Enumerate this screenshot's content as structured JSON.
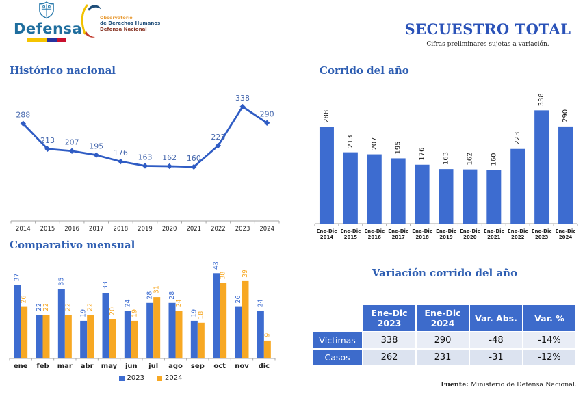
{
  "header": {
    "defensa_wordmark": "Defensa",
    "observatorio": {
      "line1": "Observatorio",
      "line2": "de Derechos Humanos",
      "line3": "Defensa Nacional"
    },
    "title": "SECUESTRO TOTAL",
    "subtitle": "Cifras preliminares sujetas a variación."
  },
  "colors": {
    "primary_blue": "#3D6CD0",
    "line_blue": "#2F5CC4",
    "label_blue": "#4668AE",
    "accent_orange": "#F7A823",
    "heading_blue": "#2E5EB2",
    "axis_gray": "#A6A6A6",
    "table_header_blue": "#3D6BCB"
  },
  "chart_data": [
    {
      "id": "historico",
      "type": "line",
      "title": "Histórico nacional",
      "categories": [
        "2014",
        "2015",
        "2016",
        "2017",
        "2018",
        "2019",
        "2020",
        "2021",
        "2022",
        "2023",
        "2024"
      ],
      "values": [
        288,
        213,
        207,
        195,
        176,
        163,
        162,
        160,
        223,
        338,
        290
      ],
      "xlabel": "",
      "ylabel": "",
      "ylim": [
        0,
        400
      ],
      "grid": false,
      "legend_position": "none",
      "data_labels": true
    },
    {
      "id": "corrido",
      "type": "bar",
      "title": "Corrido del año",
      "categories": [
        "Ene-Dic\n2014",
        "Ene-Dic\n2015",
        "Ene-Dic\n2016",
        "Ene-Dic\n2017",
        "Ene-Dic\n2018",
        "Ene-Dic\n2019",
        "Ene-Dic\n2020",
        "Ene-Dic\n2021",
        "Ene-Dic\n2022",
        "Ene-Dic\n2023",
        "Ene-Dic\n2024"
      ],
      "values": [
        288,
        213,
        207,
        195,
        176,
        163,
        162,
        160,
        223,
        338,
        290
      ],
      "xlabel": "",
      "ylabel": "",
      "ylim": [
        0,
        420
      ],
      "grid": false,
      "legend_position": "none",
      "data_labels": "rotated"
    },
    {
      "id": "mensual",
      "type": "bar",
      "title": "Comparativo mensual",
      "categories": [
        "ene",
        "feb",
        "mar",
        "abr",
        "may",
        "jun",
        "jul",
        "ago",
        "sep",
        "oct",
        "nov",
        "dic"
      ],
      "series": [
        {
          "name": "2023",
          "color": "#3D6CD0",
          "values": [
            37,
            22,
            35,
            19,
            33,
            24,
            28,
            28,
            19,
            43,
            26,
            24
          ]
        },
        {
          "name": "2024",
          "color": "#F7A823",
          "values": [
            26,
            22,
            22,
            22,
            20,
            19,
            31,
            24,
            18,
            38,
            39,
            9
          ]
        }
      ],
      "xlabel": "",
      "ylabel": "",
      "ylim": [
        0,
        50
      ],
      "grid": false,
      "legend_position": "bottom",
      "data_labels": "rotated"
    }
  ],
  "variation_table": {
    "title": "Variación corrido del año",
    "columns": [
      "",
      "Ene-Dic\n2023",
      "Ene-Dic\n2024",
      "Var. Abs.",
      "Var. %"
    ],
    "rows": [
      {
        "label": "Víctimas",
        "values": [
          "338",
          "290",
          "-48",
          "-14%"
        ]
      },
      {
        "label": "Casos",
        "values": [
          "262",
          "231",
          "-31",
          "-12%"
        ]
      }
    ]
  },
  "footer": {
    "source_label": "Fuente:",
    "source_text": " Ministerio de Defensa Nacional."
  }
}
